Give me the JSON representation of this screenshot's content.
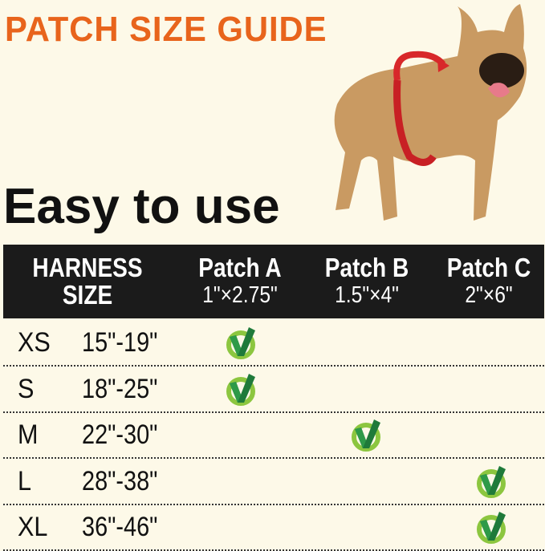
{
  "title": "PATCH SIZE GUIDE",
  "subtitle": "Easy to use",
  "colors": {
    "title": "#e8641c",
    "header_bg": "#1b1b1b",
    "check_dark": "#1f7a3a",
    "check_light": "#8cc63f",
    "ring": "#d8282a"
  },
  "table": {
    "headers": [
      {
        "line1": "HARNESS",
        "line2": "SIZE"
      },
      {
        "line1": "Patch A",
        "line2": "1\"×2.75\""
      },
      {
        "line1": "Patch B",
        "line2": "1.5\"×4\""
      },
      {
        "line1": "Patch C",
        "line2": "2\"×6\""
      }
    ],
    "rows": [
      {
        "size": "XS",
        "range": "15\"-19\"",
        "patch": "A"
      },
      {
        "size": "S",
        "range": "18\"-25\"",
        "patch": "A"
      },
      {
        "size": "M",
        "range": "22\"-30\"",
        "patch": "B"
      },
      {
        "size": "L",
        "range": "28\"-38\"",
        "patch": "C"
      },
      {
        "size": "XL",
        "range": "36\"-46\"",
        "patch": "C"
      }
    ],
    "check_icon": "checkmark-circle-icon"
  }
}
